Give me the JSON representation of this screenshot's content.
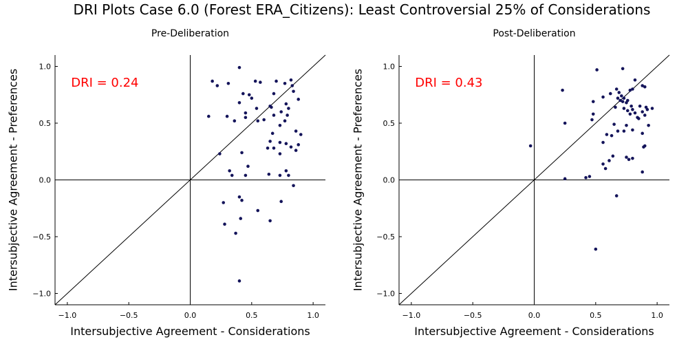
{
  "title": "DRI Plots Case 6.0 (Forest ERA_Citizens): Least Controversial 25% of Considerations",
  "colors": {
    "point": "#14145a",
    "dri": "#ff0000",
    "axis": "#000000"
  },
  "chart_data": [
    {
      "type": "scatter",
      "title": "Pre-Deliberation",
      "xlabel": "Intersubjective Agreement - Considerations",
      "ylabel": "Intersubjective Agreement - Preferences",
      "xlim": [
        -1.1,
        1.1
      ],
      "ylim": [
        -1.1,
        1.1
      ],
      "xticks": [
        -1.0,
        -0.5,
        0.0,
        0.5,
        1.0
      ],
      "yticks": [
        -1.0,
        -0.5,
        0.0,
        0.5,
        1.0
      ],
      "xtick_labels": [
        "−1.0",
        "−0.5",
        "0.0",
        "0.5",
        "1.0"
      ],
      "ytick_labels": [
        "−1.0",
        "−0.5",
        "0.0",
        "0.5",
        "1.0"
      ],
      "annotation": "DRI = 0.24",
      "reference_lines": [
        "x=0",
        "y=0",
        "y=x"
      ],
      "points": [
        [
          0.4,
          0.99
        ],
        [
          0.18,
          0.87
        ],
        [
          0.22,
          0.83
        ],
        [
          0.31,
          0.85
        ],
        [
          0.53,
          0.87
        ],
        [
          0.57,
          0.86
        ],
        [
          0.7,
          0.87
        ],
        [
          0.77,
          0.85
        ],
        [
          0.82,
          0.88
        ],
        [
          0.83,
          0.83
        ],
        [
          0.43,
          0.76
        ],
        [
          0.48,
          0.75
        ],
        [
          0.5,
          0.72
        ],
        [
          0.68,
          0.76
        ],
        [
          0.84,
          0.78
        ],
        [
          0.88,
          0.71
        ],
        [
          0.4,
          0.68
        ],
        [
          0.54,
          0.63
        ],
        [
          0.65,
          0.65
        ],
        [
          0.66,
          0.64
        ],
        [
          0.78,
          0.67
        ],
        [
          0.8,
          0.63
        ],
        [
          0.15,
          0.56
        ],
        [
          0.3,
          0.56
        ],
        [
          0.36,
          0.52
        ],
        [
          0.45,
          0.59
        ],
        [
          0.45,
          0.55
        ],
        [
          0.55,
          0.52
        ],
        [
          0.6,
          0.53
        ],
        [
          0.68,
          0.57
        ],
        [
          0.74,
          0.6
        ],
        [
          0.77,
          0.52
        ],
        [
          0.79,
          0.57
        ],
        [
          0.86,
          0.43
        ],
        [
          0.9,
          0.4
        ],
        [
          0.73,
          0.48
        ],
        [
          0.67,
          0.41
        ],
        [
          0.63,
          0.28
        ],
        [
          0.65,
          0.34
        ],
        [
          0.68,
          0.28
        ],
        [
          0.73,
          0.33
        ],
        [
          0.73,
          0.23
        ],
        [
          0.78,
          0.32
        ],
        [
          0.82,
          0.29
        ],
        [
          0.86,
          0.26
        ],
        [
          0.88,
          0.31
        ],
        [
          0.24,
          0.23
        ],
        [
          0.42,
          0.24
        ],
        [
          0.47,
          0.12
        ],
        [
          0.32,
          0.08
        ],
        [
          0.34,
          0.04
        ],
        [
          0.45,
          0.04
        ],
        [
          0.64,
          0.05
        ],
        [
          0.73,
          0.04
        ],
        [
          0.78,
          0.08
        ],
        [
          0.8,
          0.04
        ],
        [
          0.84,
          -0.05
        ],
        [
          0.4,
          -0.15
        ],
        [
          0.42,
          -0.18
        ],
        [
          0.27,
          -0.2
        ],
        [
          0.74,
          -0.19
        ],
        [
          0.55,
          -0.27
        ],
        [
          0.41,
          -0.34
        ],
        [
          0.28,
          -0.39
        ],
        [
          0.65,
          -0.36
        ],
        [
          0.37,
          -0.47
        ],
        [
          0.4,
          -0.89
        ]
      ]
    },
    {
      "type": "scatter",
      "title": "Post-Deliberation",
      "xlabel": "Intersubjective Agreement - Considerations",
      "ylabel": "Intersubjective Agreement - Preferences",
      "xlim": [
        -1.1,
        1.1
      ],
      "ylim": [
        -1.1,
        1.1
      ],
      "xticks": [
        -1.0,
        -0.5,
        0.0,
        0.5,
        1.0
      ],
      "yticks": [
        -1.0,
        -0.5,
        0.0,
        0.5,
        1.0
      ],
      "xtick_labels": [
        "−1.0",
        "−0.5",
        "0.0",
        "0.5",
        "1.0"
      ],
      "ytick_labels": [
        "−1.0",
        "−0.5",
        "0.0",
        "0.5",
        "1.0"
      ],
      "annotation": "DRI = 0.43",
      "reference_lines": [
        "x=0",
        "y=0",
        "y=x"
      ],
      "points": [
        [
          0.51,
          0.97
        ],
        [
          0.72,
          0.98
        ],
        [
          0.23,
          0.79
        ],
        [
          0.82,
          0.88
        ],
        [
          0.78,
          0.79
        ],
        [
          0.8,
          0.8
        ],
        [
          0.88,
          0.83
        ],
        [
          0.9,
          0.82
        ],
        [
          0.67,
          0.8
        ],
        [
          0.69,
          0.77
        ],
        [
          0.71,
          0.74
        ],
        [
          0.73,
          0.72
        ],
        [
          0.76,
          0.7
        ],
        [
          0.62,
          0.76
        ],
        [
          0.56,
          0.73
        ],
        [
          0.68,
          0.72
        ],
        [
          0.7,
          0.7
        ],
        [
          0.72,
          0.69
        ],
        [
          0.75,
          0.68
        ],
        [
          0.48,
          0.69
        ],
        [
          0.66,
          0.64
        ],
        [
          0.73,
          0.63
        ],
        [
          0.76,
          0.61
        ],
        [
          0.79,
          0.65
        ],
        [
          0.8,
          0.62
        ],
        [
          0.82,
          0.59
        ],
        [
          0.86,
          0.65
        ],
        [
          0.88,
          0.6
        ],
        [
          0.91,
          0.64
        ],
        [
          0.92,
          0.62
        ],
        [
          0.96,
          0.63
        ],
        [
          0.78,
          0.58
        ],
        [
          0.84,
          0.55
        ],
        [
          0.85,
          0.54
        ],
        [
          0.9,
          0.57
        ],
        [
          0.48,
          0.58
        ],
        [
          0.47,
          0.53
        ],
        [
          0.25,
          0.5
        ],
        [
          0.65,
          0.49
        ],
        [
          0.75,
          0.48
        ],
        [
          0.93,
          0.48
        ],
        [
          0.68,
          0.43
        ],
        [
          0.73,
          0.43
        ],
        [
          0.8,
          0.44
        ],
        [
          0.88,
          0.41
        ],
        [
          0.59,
          0.4
        ],
        [
          0.63,
          0.39
        ],
        [
          0.56,
          0.33
        ],
        [
          0.89,
          0.29
        ],
        [
          0.9,
          0.3
        ],
        [
          0.75,
          0.2
        ],
        [
          0.77,
          0.18
        ],
        [
          0.8,
          0.19
        ],
        [
          0.64,
          0.21
        ],
        [
          0.61,
          0.17
        ],
        [
          0.56,
          0.14
        ],
        [
          0.58,
          0.1
        ],
        [
          -0.03,
          0.3
        ],
        [
          0.25,
          0.01
        ],
        [
          0.42,
          0.02
        ],
        [
          0.45,
          0.03
        ],
        [
          0.88,
          0.07
        ],
        [
          0.67,
          -0.14
        ],
        [
          0.5,
          -0.61
        ]
      ]
    }
  ]
}
